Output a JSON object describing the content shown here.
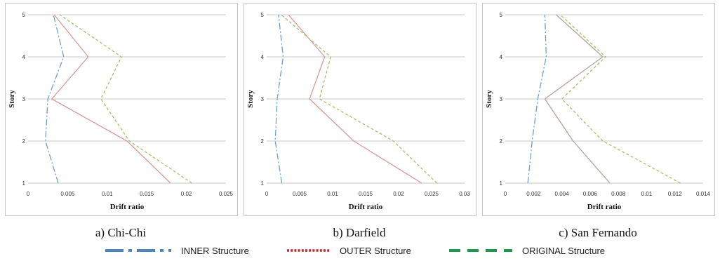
{
  "chart_data": [
    {
      "type": "line",
      "caption": "a) Chi-Chi",
      "xlabel": "Drift ratio",
      "ylabel": "Story",
      "xlim": [
        0,
        0.025
      ],
      "ylim": [
        1,
        5
      ],
      "x_ticks": [
        0,
        0.005,
        0.01,
        0.015,
        0.02,
        0.025
      ],
      "x_tick_labels": [
        "0",
        "0.005",
        "0.01",
        "0.015",
        "0.02",
        "0.025"
      ],
      "y_ticks": [
        1,
        2,
        3,
        4,
        5
      ],
      "y_tick_labels": [
        "1",
        "2",
        "3",
        "4",
        "5"
      ],
      "grid": "horizontal",
      "series": [
        {
          "name": "INNER Structure",
          "style": "dashdot",
          "color": "#6f9fcf",
          "points": [
            [
              0.0038,
              1
            ],
            [
              0.0022,
              2
            ],
            [
              0.0025,
              3
            ],
            [
              0.0045,
              4
            ],
            [
              0.0032,
              5
            ]
          ]
        },
        {
          "name": "OUTER Structure",
          "style": "solid",
          "color": "#d89a98",
          "points": [
            [
              0.018,
              1
            ],
            [
              0.0125,
              2
            ],
            [
              0.003,
              3
            ],
            [
              0.0076,
              4
            ],
            [
              0.0033,
              5
            ]
          ]
        },
        {
          "name": "ORIGINAL Structure",
          "style": "dashed",
          "color": "#a6bf6a",
          "points": [
            [
              0.0207,
              1
            ],
            [
              0.0128,
              2
            ],
            [
              0.0092,
              3
            ],
            [
              0.0118,
              4
            ],
            [
              0.004,
              5
            ]
          ]
        }
      ]
    },
    {
      "type": "line",
      "caption": "b) Darfield",
      "xlabel": "Drift ratio",
      "ylabel": "Story",
      "xlim": [
        0,
        0.03
      ],
      "ylim": [
        1,
        5
      ],
      "x_ticks": [
        0,
        0.005,
        0.01,
        0.015,
        0.02,
        0.025,
        0.03
      ],
      "x_tick_labels": [
        "0",
        "0.005",
        "0.01",
        "0.015",
        "0.02",
        "0.025",
        "0.03"
      ],
      "y_ticks": [
        1,
        2,
        3,
        4,
        5
      ],
      "y_tick_labels": [
        "1",
        "2",
        "3",
        "4",
        "5"
      ],
      "grid": "horizontal",
      "series": [
        {
          "name": "INNER Structure",
          "style": "dashdot",
          "color": "#6f9fcf",
          "points": [
            [
              0.0023,
              1
            ],
            [
              0.0013,
              2
            ],
            [
              0.0016,
              3
            ],
            [
              0.0025,
              4
            ],
            [
              0.0018,
              5
            ]
          ]
        },
        {
          "name": "OUTER Structure",
          "style": "solid",
          "color": "#d89a98",
          "points": [
            [
              0.0235,
              1
            ],
            [
              0.0132,
              2
            ],
            [
              0.0065,
              3
            ],
            [
              0.0088,
              4
            ],
            [
              0.0033,
              5
            ]
          ]
        },
        {
          "name": "ORIGINAL Structure",
          "style": "dashed",
          "color": "#a6bf6a",
          "points": [
            [
              0.0258,
              1
            ],
            [
              0.0192,
              2
            ],
            [
              0.008,
              3
            ],
            [
              0.0097,
              4
            ],
            [
              0.0022,
              5
            ]
          ]
        }
      ]
    },
    {
      "type": "line",
      "caption": "c) San Fernando",
      "xlabel": "Drift ratio",
      "ylabel": "Story",
      "xlim": [
        0,
        0.014
      ],
      "ylim": [
        1,
        5
      ],
      "x_ticks": [
        0,
        0.002,
        0.004,
        0.006,
        0.008,
        0.01,
        0.012,
        0.014
      ],
      "x_tick_labels": [
        "0",
        "0.002",
        "0.004",
        "0.006",
        "0.008",
        "0.01",
        "0.012",
        "0.014"
      ],
      "y_ticks": [
        1,
        2,
        3,
        4,
        5
      ],
      "y_tick_labels": [
        "1",
        "2",
        "3",
        "4",
        "5"
      ],
      "grid": "horizontal",
      "series": [
        {
          "name": "INNER Structure",
          "style": "dashdot",
          "color": "#6f9fcf",
          "points": [
            [
              0.0016,
              1
            ],
            [
              0.0019,
              2
            ],
            [
              0.0023,
              3
            ],
            [
              0.0029,
              4
            ],
            [
              0.0028,
              5
            ]
          ]
        },
        {
          "name": "OUTER Structure",
          "style": "solid",
          "color": "#b8a19a",
          "points": [
            [
              0.0074,
              1
            ],
            [
              0.0048,
              2
            ],
            [
              0.0028,
              3
            ],
            [
              0.0069,
              4
            ],
            [
              0.0036,
              5
            ]
          ]
        },
        {
          "name": "ORIGINAL Structure",
          "style": "dashed",
          "color": "#a6bf6a",
          "points": [
            [
              0.0124,
              1
            ],
            [
              0.0069,
              2
            ],
            [
              0.004,
              3
            ],
            [
              0.0071,
              4
            ],
            [
              0.0039,
              5
            ]
          ]
        }
      ]
    }
  ],
  "legend": [
    {
      "label": "INNER Structure",
      "icon": "dash-dot-line-icon",
      "color": "#4f86c0"
    },
    {
      "label": "OUTER Structure",
      "icon": "dotted-line-icon",
      "color": "#c0282d"
    },
    {
      "label": "ORIGINAL Structure",
      "icon": "dashed-line-icon",
      "color": "#1e9a50"
    }
  ]
}
